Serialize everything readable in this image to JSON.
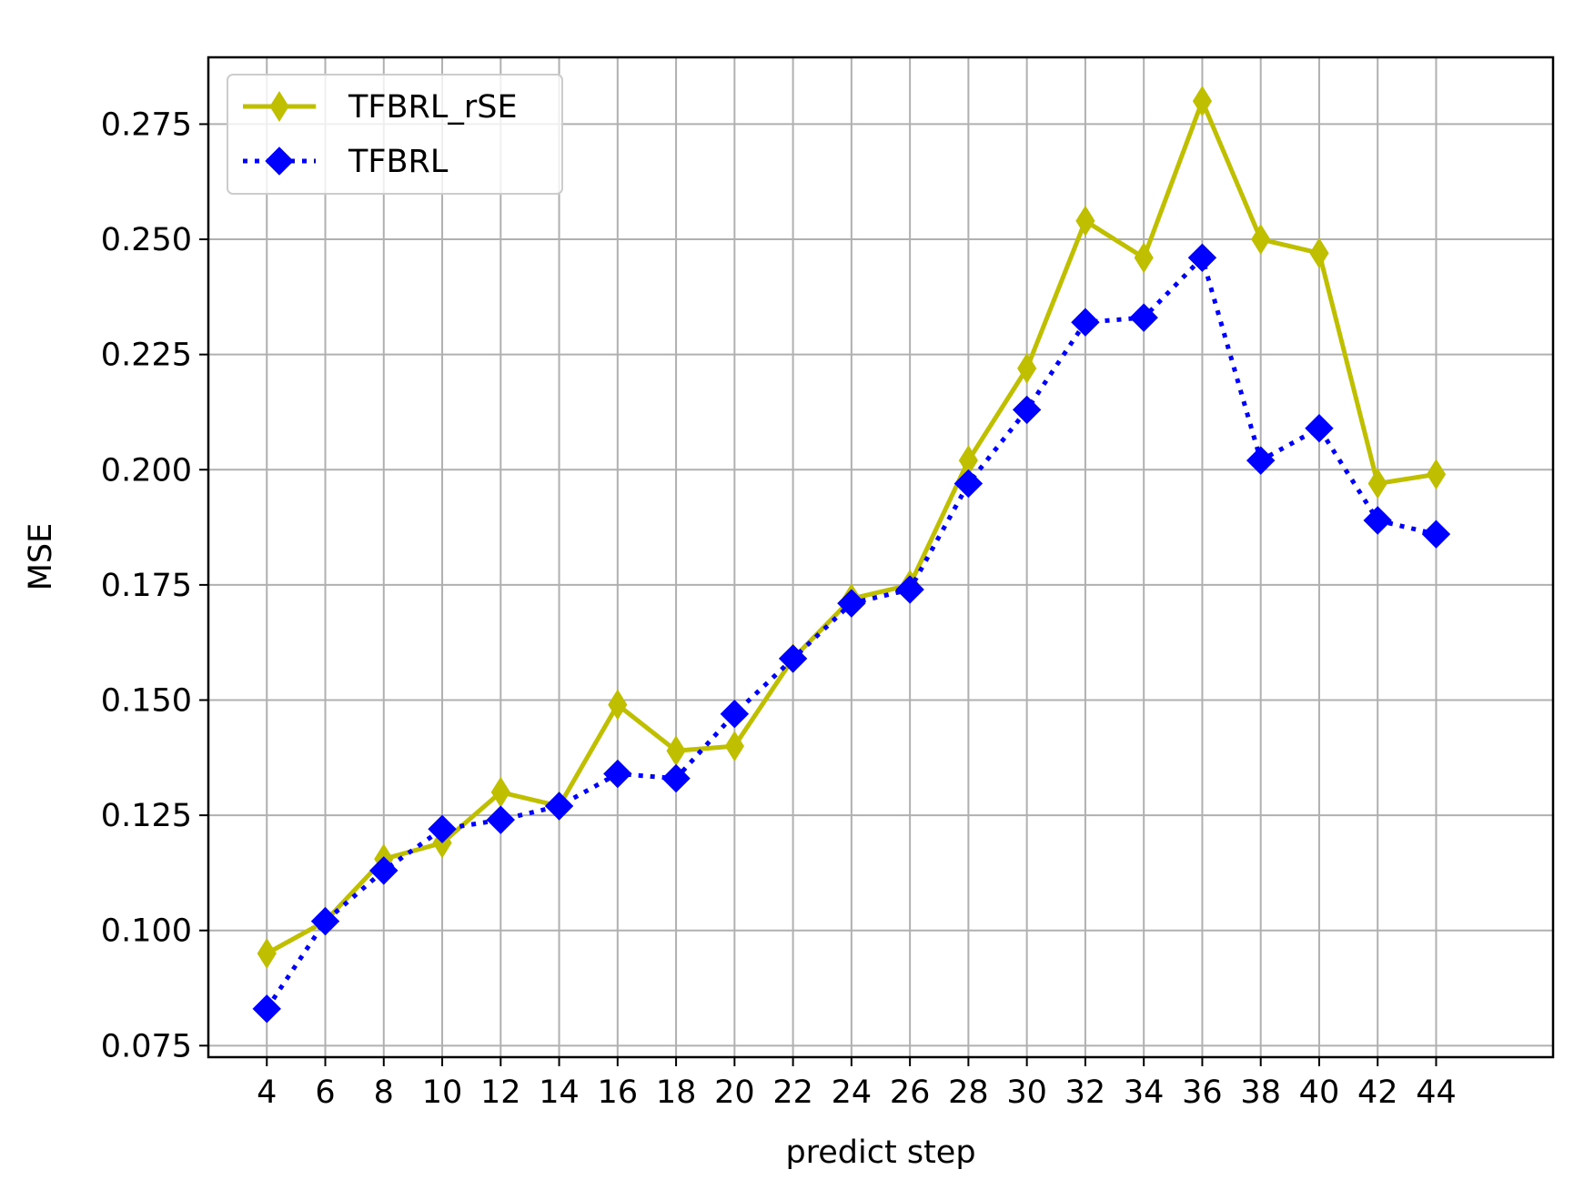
{
  "chart_data": {
    "type": "line",
    "xlabel": "predict step",
    "ylabel": "MSE",
    "x": [
      4,
      6,
      8,
      10,
      12,
      14,
      16,
      18,
      20,
      22,
      24,
      26,
      28,
      30,
      32,
      34,
      36,
      38,
      40,
      42,
      44
    ],
    "xlim": [
      2,
      48
    ],
    "ylim": [
      0.0725,
      0.2895
    ],
    "xticks": [
      "4",
      "6",
      "8",
      "10",
      "12",
      "14",
      "16",
      "18",
      "20",
      "22",
      "24",
      "26",
      "28",
      "30",
      "32",
      "34",
      "36",
      "38",
      "40",
      "42",
      "44"
    ],
    "yticks": [
      "0.075",
      "0.100",
      "0.125",
      "0.150",
      "0.175",
      "0.200",
      "0.225",
      "0.250",
      "0.275"
    ],
    "grid": true,
    "legend_position": "top-left",
    "series": [
      {
        "name": "TFBRL_rSE",
        "color": "#bfbf00",
        "line_style": "solid",
        "marker": "thin-diamond",
        "values": [
          0.095,
          0.102,
          0.1155,
          0.119,
          0.13,
          0.127,
          0.149,
          0.139,
          0.14,
          0.159,
          0.172,
          0.175,
          0.202,
          0.222,
          0.254,
          0.246,
          0.28,
          0.25,
          0.247,
          0.197,
          0.199
        ]
      },
      {
        "name": "TFBRL",
        "color": "#0000ff",
        "line_style": "dotted",
        "marker": "diamond",
        "values": [
          0.083,
          0.102,
          0.113,
          0.122,
          0.124,
          0.127,
          0.134,
          0.133,
          0.147,
          0.159,
          0.171,
          0.174,
          0.197,
          0.213,
          0.232,
          0.233,
          0.246,
          0.202,
          0.209,
          0.189,
          0.186
        ]
      }
    ]
  }
}
